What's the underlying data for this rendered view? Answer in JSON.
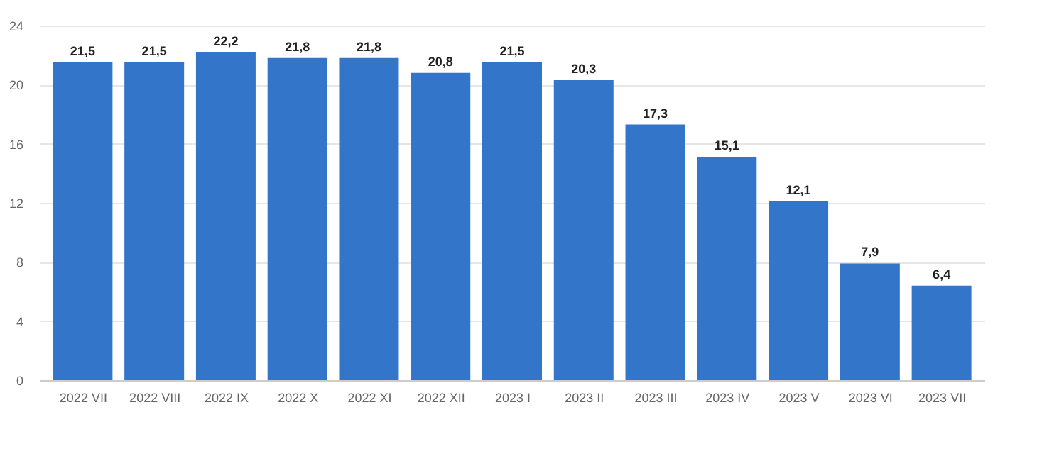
{
  "chart_data": {
    "type": "bar",
    "categories": [
      "2022 VII",
      "2022 VIII",
      "2022 IX",
      "2022 X",
      "2022 XI",
      "2022 XII",
      "2023 I",
      "2023 II",
      "2023 III",
      "2023 IV",
      "2023 V",
      "2023 VI",
      "2023 VII"
    ],
    "values": [
      21.5,
      21.5,
      22.2,
      21.8,
      21.8,
      20.8,
      21.5,
      20.3,
      17.3,
      15.1,
      12.1,
      7.9,
      6.4
    ],
    "value_labels": [
      "21,5",
      "21,5",
      "22,2",
      "21,8",
      "21,8",
      "20,8",
      "21,5",
      "20,3",
      "17,3",
      "15,1",
      "12,1",
      "7,9",
      "6,4"
    ],
    "color": "#3375c8",
    "ylim": [
      0,
      24
    ],
    "yticks": [
      0,
      4,
      8,
      12,
      16,
      20,
      24
    ],
    "grid": "y"
  }
}
